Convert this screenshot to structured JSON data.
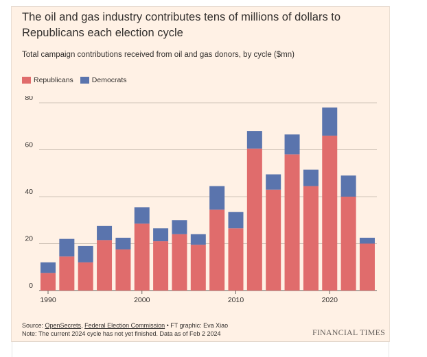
{
  "title": "The oil and gas industry contributes tens of millions of dollars to Republicans each election cycle",
  "subtitle": "Total campaign contributions received from oil and gas donors, by cycle ($mn)",
  "legend": [
    {
      "label": "Republicans",
      "color": "#e06c6c"
    },
    {
      "label": "Democrats",
      "color": "#5a74ad"
    }
  ],
  "source": {
    "prefix": "Source: ",
    "link1": "OpenSecrets",
    "sep": ", ",
    "link2": "Federal Election Commission",
    "suffix": " • FT graphic: Eva Xiao",
    "note": "Note: The current 2024 cycle has not yet finished. Data as of Feb 2 2024"
  },
  "brand": "FINANCIAL TIMES",
  "chart_data": {
    "type": "bar",
    "stacked": true,
    "x": [
      1990,
      1992,
      1994,
      1996,
      1998,
      2000,
      2002,
      2004,
      2006,
      2008,
      2010,
      2012,
      2014,
      2016,
      2018,
      2020,
      2022,
      2024
    ],
    "series": [
      {
        "name": "Republicans",
        "color": "#e06c6c",
        "values": [
          7.5,
          14.5,
          12,
          21.5,
          17.5,
          28.5,
          21,
          24,
          19.5,
          34.5,
          26.5,
          60.5,
          43,
          58,
          44.5,
          66,
          40,
          20
        ]
      },
      {
        "name": "Democrats",
        "color": "#5a74ad",
        "values": [
          4.5,
          7.5,
          7,
          6,
          5,
          7,
          5.5,
          6,
          4.5,
          10,
          7,
          7.5,
          6.5,
          8.5,
          7,
          12,
          9,
          2.5
        ]
      }
    ],
    "yticks": [
      0,
      20,
      40,
      60,
      80
    ],
    "xticks": [
      1990,
      2000,
      2010,
      2020
    ],
    "ylim": [
      0,
      80
    ],
    "grid": true,
    "legend_position": "top-left"
  }
}
